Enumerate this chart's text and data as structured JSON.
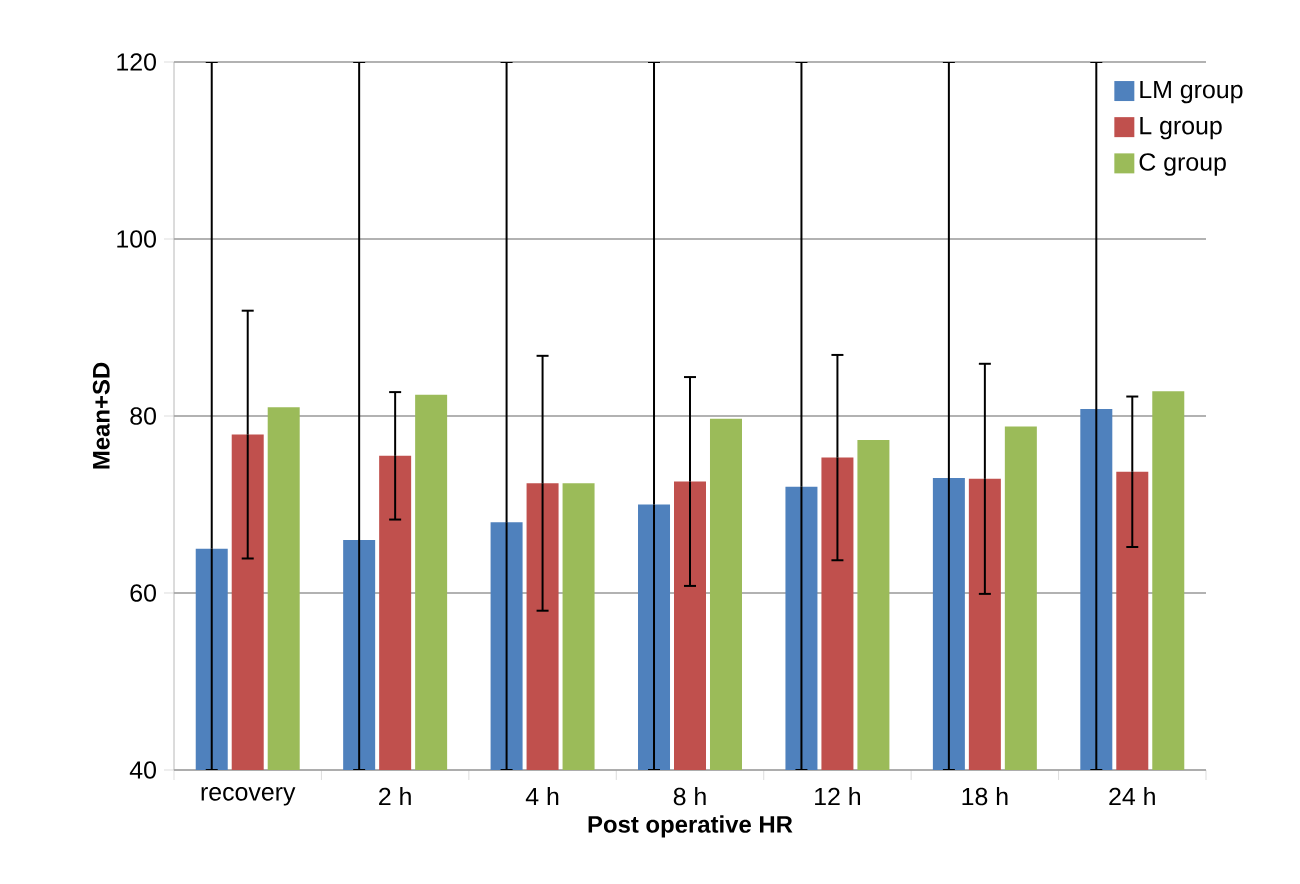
{
  "chart_data": {
    "type": "bar",
    "xlabel": "Post operative HR",
    "ylabel": "Mean+SD",
    "categories": [
      "recovery",
      "2 h",
      "4 h",
      "8 h",
      "12 h",
      "18 h",
      "24 h"
    ],
    "series": [
      {
        "name": "LM group",
        "color": "#4f81bd",
        "values": [
          65,
          66,
          68,
          70,
          72,
          73,
          80.8
        ],
        "errors": [
          [
            40,
            120
          ],
          [
            40,
            120
          ],
          [
            40,
            120
          ],
          [
            40,
            120
          ],
          [
            40,
            120
          ],
          [
            40,
            120
          ],
          [
            40,
            120
          ]
        ]
      },
      {
        "name": "L group",
        "color": "#c0504d",
        "values": [
          77.9,
          75.5,
          72.4,
          72.6,
          75.3,
          72.9,
          73.7
        ],
        "errors": [
          14,
          7.2,
          14.4,
          11.8,
          11.6,
          13,
          8.5
        ]
      },
      {
        "name": "C group",
        "color": "#9bbb59",
        "values": [
          81,
          82.4,
          72.4,
          79.7,
          77.3,
          78.8,
          82.8
        ]
      }
    ],
    "ylim": [
      40,
      120
    ],
    "yticks": [
      40,
      60,
      80,
      100,
      120
    ],
    "grid": "y",
    "legend": "top right"
  }
}
